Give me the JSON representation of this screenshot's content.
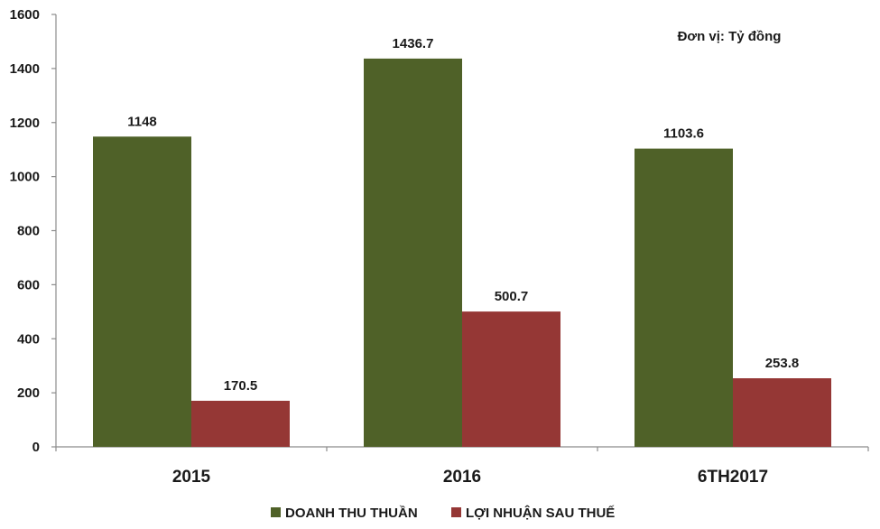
{
  "chart_data": {
    "type": "bar",
    "categories": [
      "2015",
      "2016",
      "6TH2017"
    ],
    "series": [
      {
        "name": "DOANH THU THUẦN",
        "values": [
          1148,
          1436.7,
          1103.6
        ],
        "value_labels": [
          "1148",
          "1436.7",
          "1103.6"
        ],
        "color": "#4f6128"
      },
      {
        "name": "LỢI NHUẬN SAU THUẾ",
        "values": [
          170.5,
          500.7,
          253.8
        ],
        "value_labels": [
          "170.5",
          "500.7",
          "253.8"
        ],
        "color": "#953735"
      }
    ],
    "unit_note": "Đơn vị: Tỷ đồng",
    "ylim": [
      0,
      1600
    ],
    "yticks": [
      0,
      200,
      400,
      600,
      800,
      1000,
      1200,
      1400,
      1600
    ],
    "grid": false,
    "legend_position": "bottom"
  }
}
